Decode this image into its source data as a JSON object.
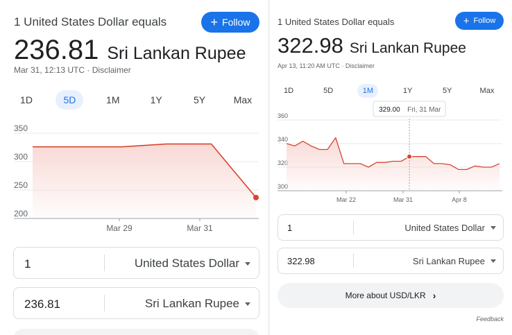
{
  "left": {
    "subtitle": "1 United States Dollar equals",
    "follow_label": "Follow",
    "rate": "236.81",
    "currency_name": "Sri Lankan Rupee",
    "timestamp": "Mar 31, 12:13 UTC",
    "disclaimer": "Disclaimer",
    "range_tabs": [
      "1D",
      "5D",
      "1M",
      "1Y",
      "5Y",
      "Max"
    ],
    "active_range": "5D",
    "from_amount": "1",
    "from_currency": "United States Dollar",
    "to_amount": "236.81",
    "to_currency": "Sri Lankan Rupee"
  },
  "right": {
    "subtitle": "1 United States Dollar equals",
    "follow_label": "Follow",
    "rate": "322.98",
    "currency_name": "Sri Lankan Rupee",
    "timestamp": "Apr 13, 11:20 AM UTC",
    "disclaimer": "Disclaimer",
    "range_tabs": [
      "1D",
      "5D",
      "1M",
      "1Y",
      "5Y",
      "Max"
    ],
    "active_range": "1M",
    "tooltip_value": "329.00",
    "tooltip_date": "Fri, 31 Mar",
    "from_amount": "1",
    "from_currency": "United States Dollar",
    "to_amount": "322.98",
    "to_currency": "Sri Lankan Rupee",
    "more_button": "More about USD/LKR",
    "feedback": "Feedback"
  },
  "colors": {
    "accent": "#1a73e8",
    "line": "#d64532",
    "fill": "#f8d7d3"
  },
  "chart_data": [
    {
      "type": "area",
      "ylim": [
        200,
        350
      ],
      "yticks": [
        200,
        250,
        300,
        350
      ],
      "xtick_labels": [
        "Mar 29",
        "Mar 31"
      ],
      "x": [
        "Mar 27",
        "Mar 28",
        "Mar 29",
        "Mar 30",
        "Mar 31",
        "Mar 31 12:13"
      ],
      "values": [
        326,
        326,
        326,
        331,
        331,
        236.81
      ]
    },
    {
      "type": "area",
      "ylim": [
        300,
        360
      ],
      "yticks": [
        300,
        320,
        340,
        360
      ],
      "xtick_labels": [
        "Mar 22",
        "Mar 31",
        "Apr 8"
      ],
      "x": [
        "Mar 14",
        "Mar 15",
        "Mar 16",
        "Mar 17",
        "Mar 18",
        "Mar 20",
        "Mar 21",
        "Mar 22",
        "Mar 23",
        "Mar 24",
        "Mar 25",
        "Mar 27",
        "Mar 28",
        "Mar 29",
        "Mar 30",
        "Mar 31",
        "Apr 1",
        "Apr 3",
        "Apr 4",
        "Apr 5",
        "Apr 6",
        "Apr 7",
        "Apr 8",
        "Apr 10",
        "Apr 11",
        "Apr 12",
        "Apr 13"
      ],
      "values": [
        340,
        338,
        342,
        338,
        335,
        335,
        345,
        323,
        323,
        323,
        320,
        324,
        324,
        325,
        325,
        329,
        329,
        329,
        323,
        323,
        322,
        318,
        318,
        321,
        320,
        320,
        322.98
      ],
      "highlight": {
        "x": "Mar 31",
        "value": 329.0
      }
    }
  ]
}
